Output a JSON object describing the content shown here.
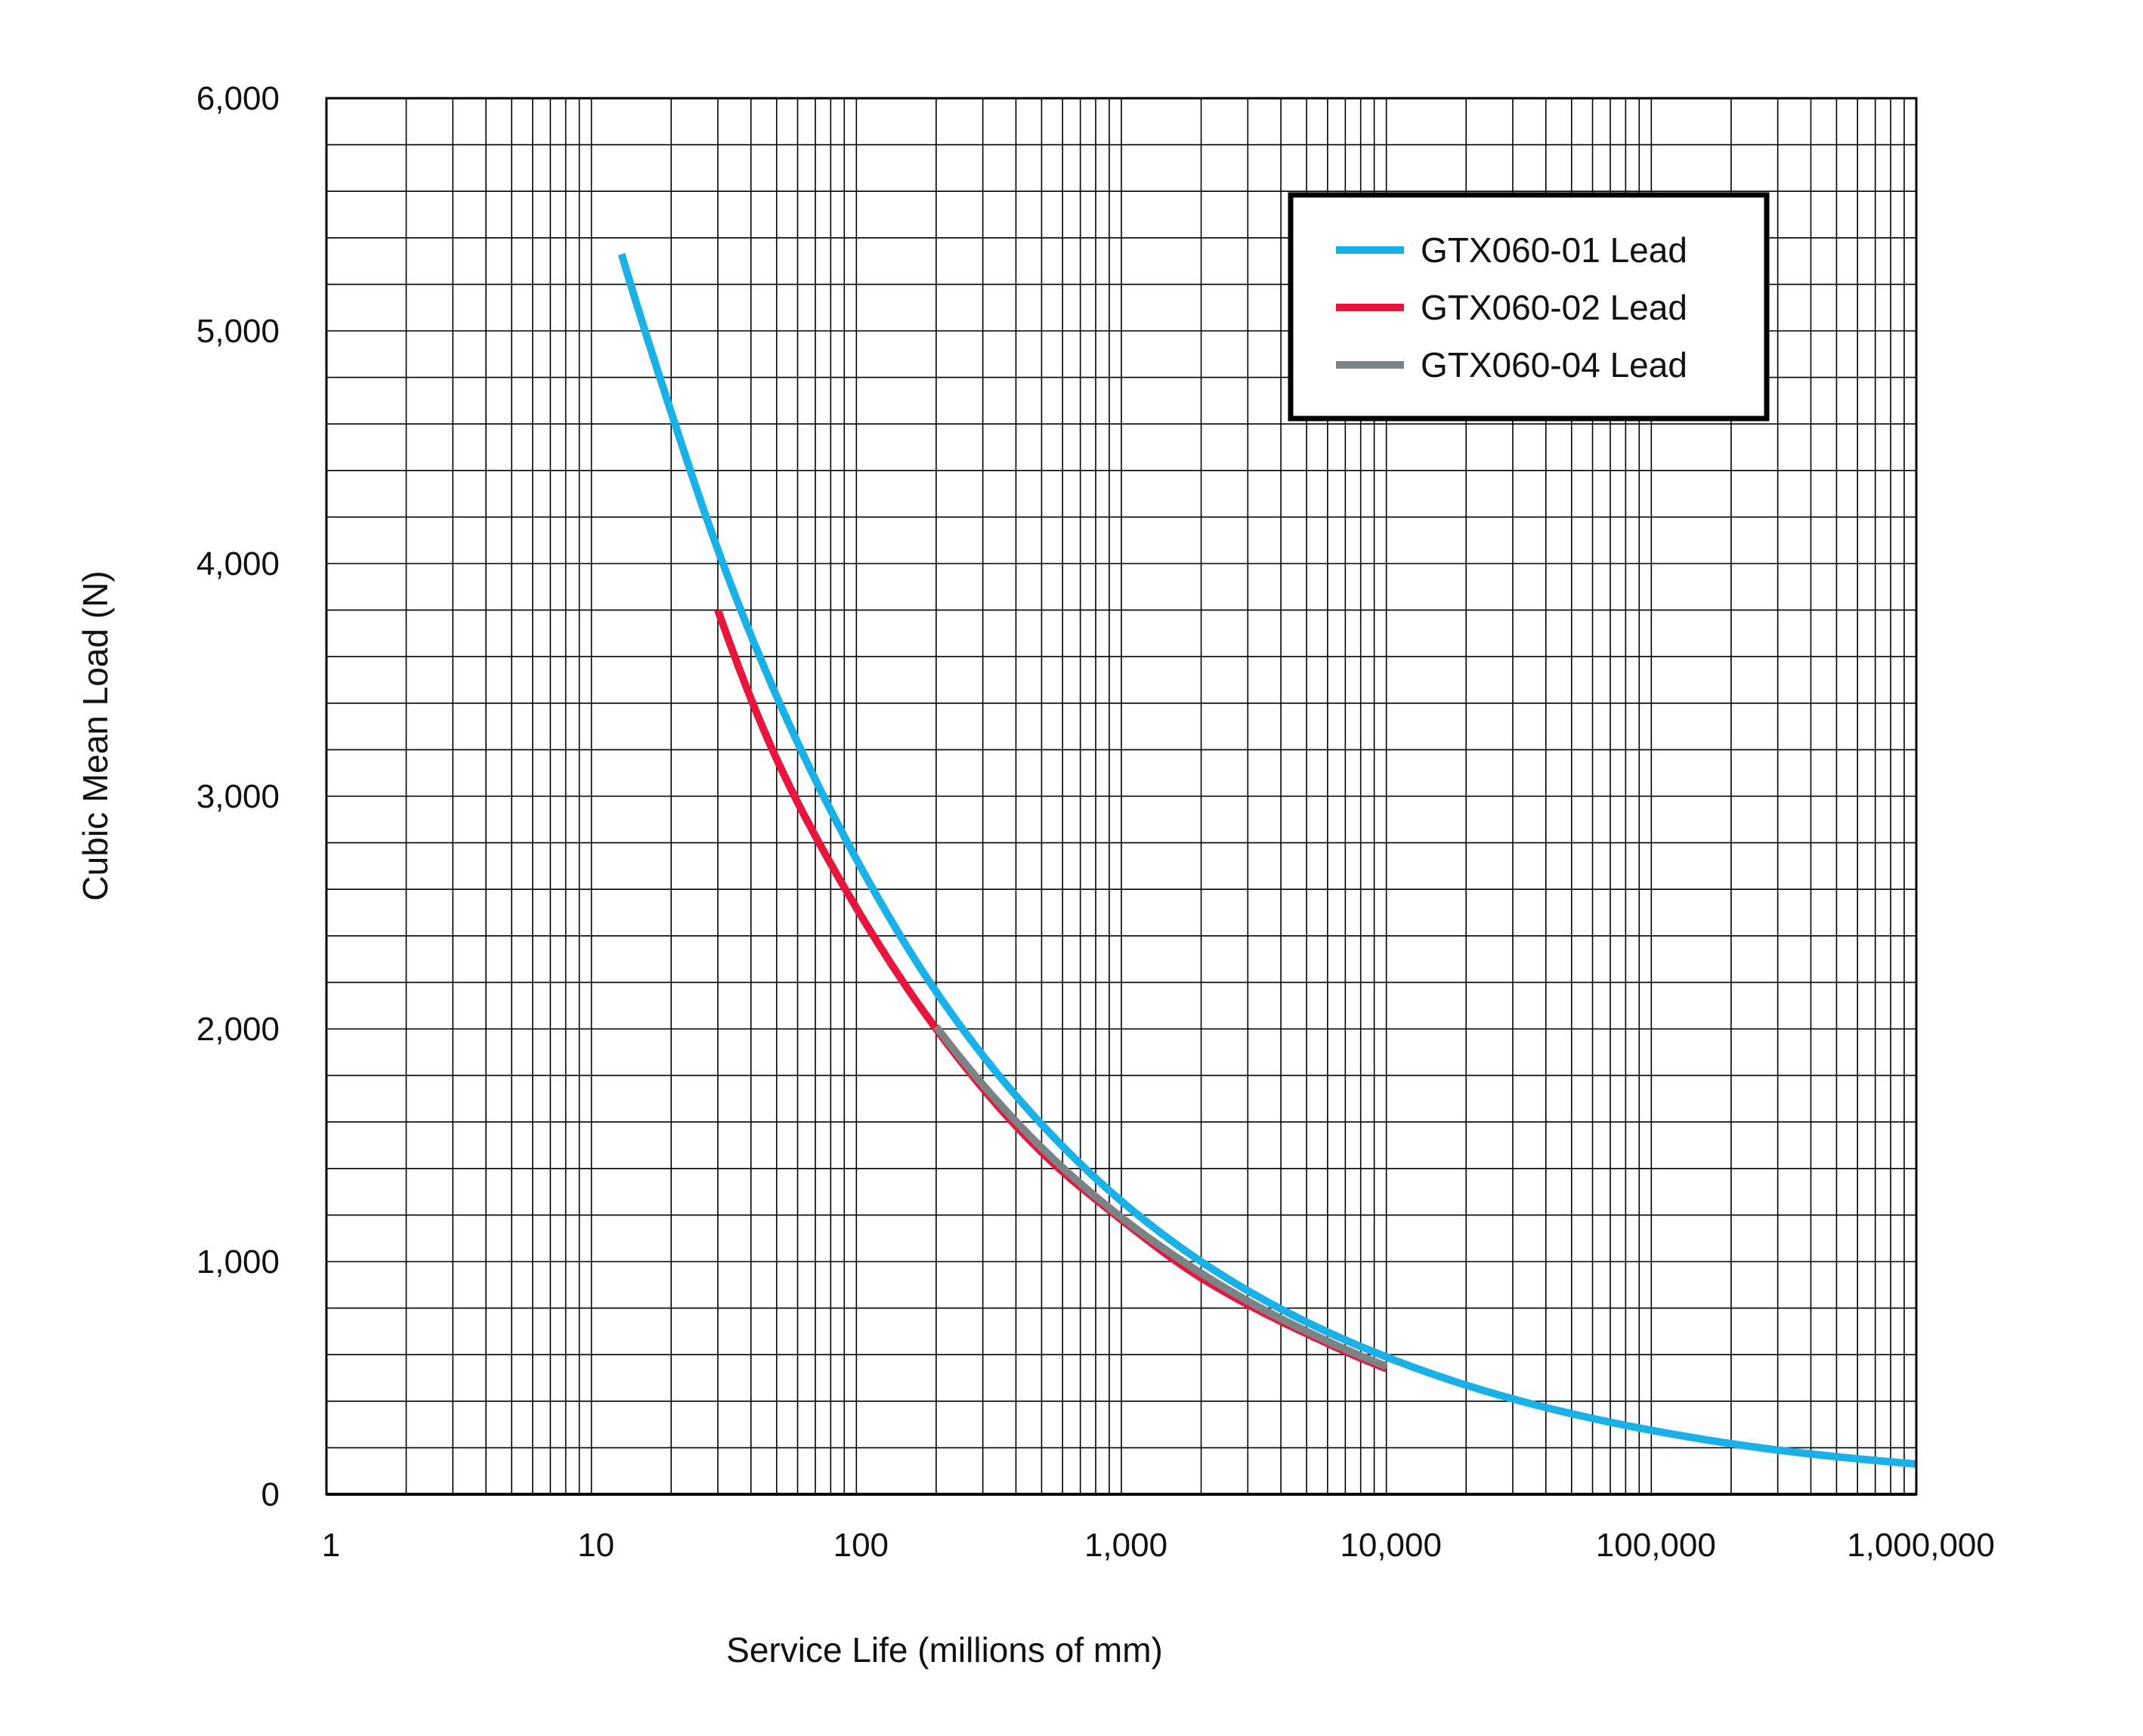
{
  "chart_data": {
    "type": "line",
    "title": "",
    "xlabel": "Service Life (millions of mm)",
    "ylabel": "Cubic Mean Load (N)",
    "x_scale": "log",
    "xlim": [
      1,
      1000000
    ],
    "ylim": [
      0,
      6000
    ],
    "x_ticks": [
      1,
      10,
      100,
      1000,
      10000,
      100000,
      1000000
    ],
    "x_tick_labels": [
      "1",
      "10",
      "100",
      "1,000",
      "10,000",
      "100,000",
      "1,000,000"
    ],
    "y_ticks": [
      0,
      1000,
      2000,
      3000,
      4000,
      5000,
      6000
    ],
    "y_tick_labels": [
      "0",
      "1,000",
      "2,000",
      "3,000",
      "4,000",
      "5,000",
      "6,000"
    ],
    "y_minor_step": 200,
    "grid": true,
    "legend_position": "top-right",
    "series": [
      {
        "name": "GTX060-01 Lead",
        "color": "#1ab0e8",
        "x": [
          13,
          20,
          30,
          50,
          100,
          200,
          500,
          1000,
          2000,
          5000,
          10000,
          30000,
          100000,
          300000,
          1000000
        ],
        "y": [
          5330,
          4650,
          4060,
          3430,
          2730,
          2160,
          1590,
          1260,
          1000,
          740,
          590,
          410,
          275,
          190,
          130
        ]
      },
      {
        "name": "GTX060-02 Lead",
        "color": "#e8153d",
        "x": [
          30,
          50,
          100,
          200,
          500,
          1000,
          2000,
          5000,
          10000
        ],
        "y": [
          3800,
          3160,
          2520,
          2000,
          1470,
          1180,
          930,
          690,
          540
        ]
      },
      {
        "name": "GTX060-04 Lead",
        "color": "#7d8284",
        "x": [
          200,
          500,
          1000,
          2000,
          5000,
          10000
        ],
        "y": [
          2010,
          1490,
          1190,
          950,
          700,
          550
        ]
      }
    ]
  }
}
